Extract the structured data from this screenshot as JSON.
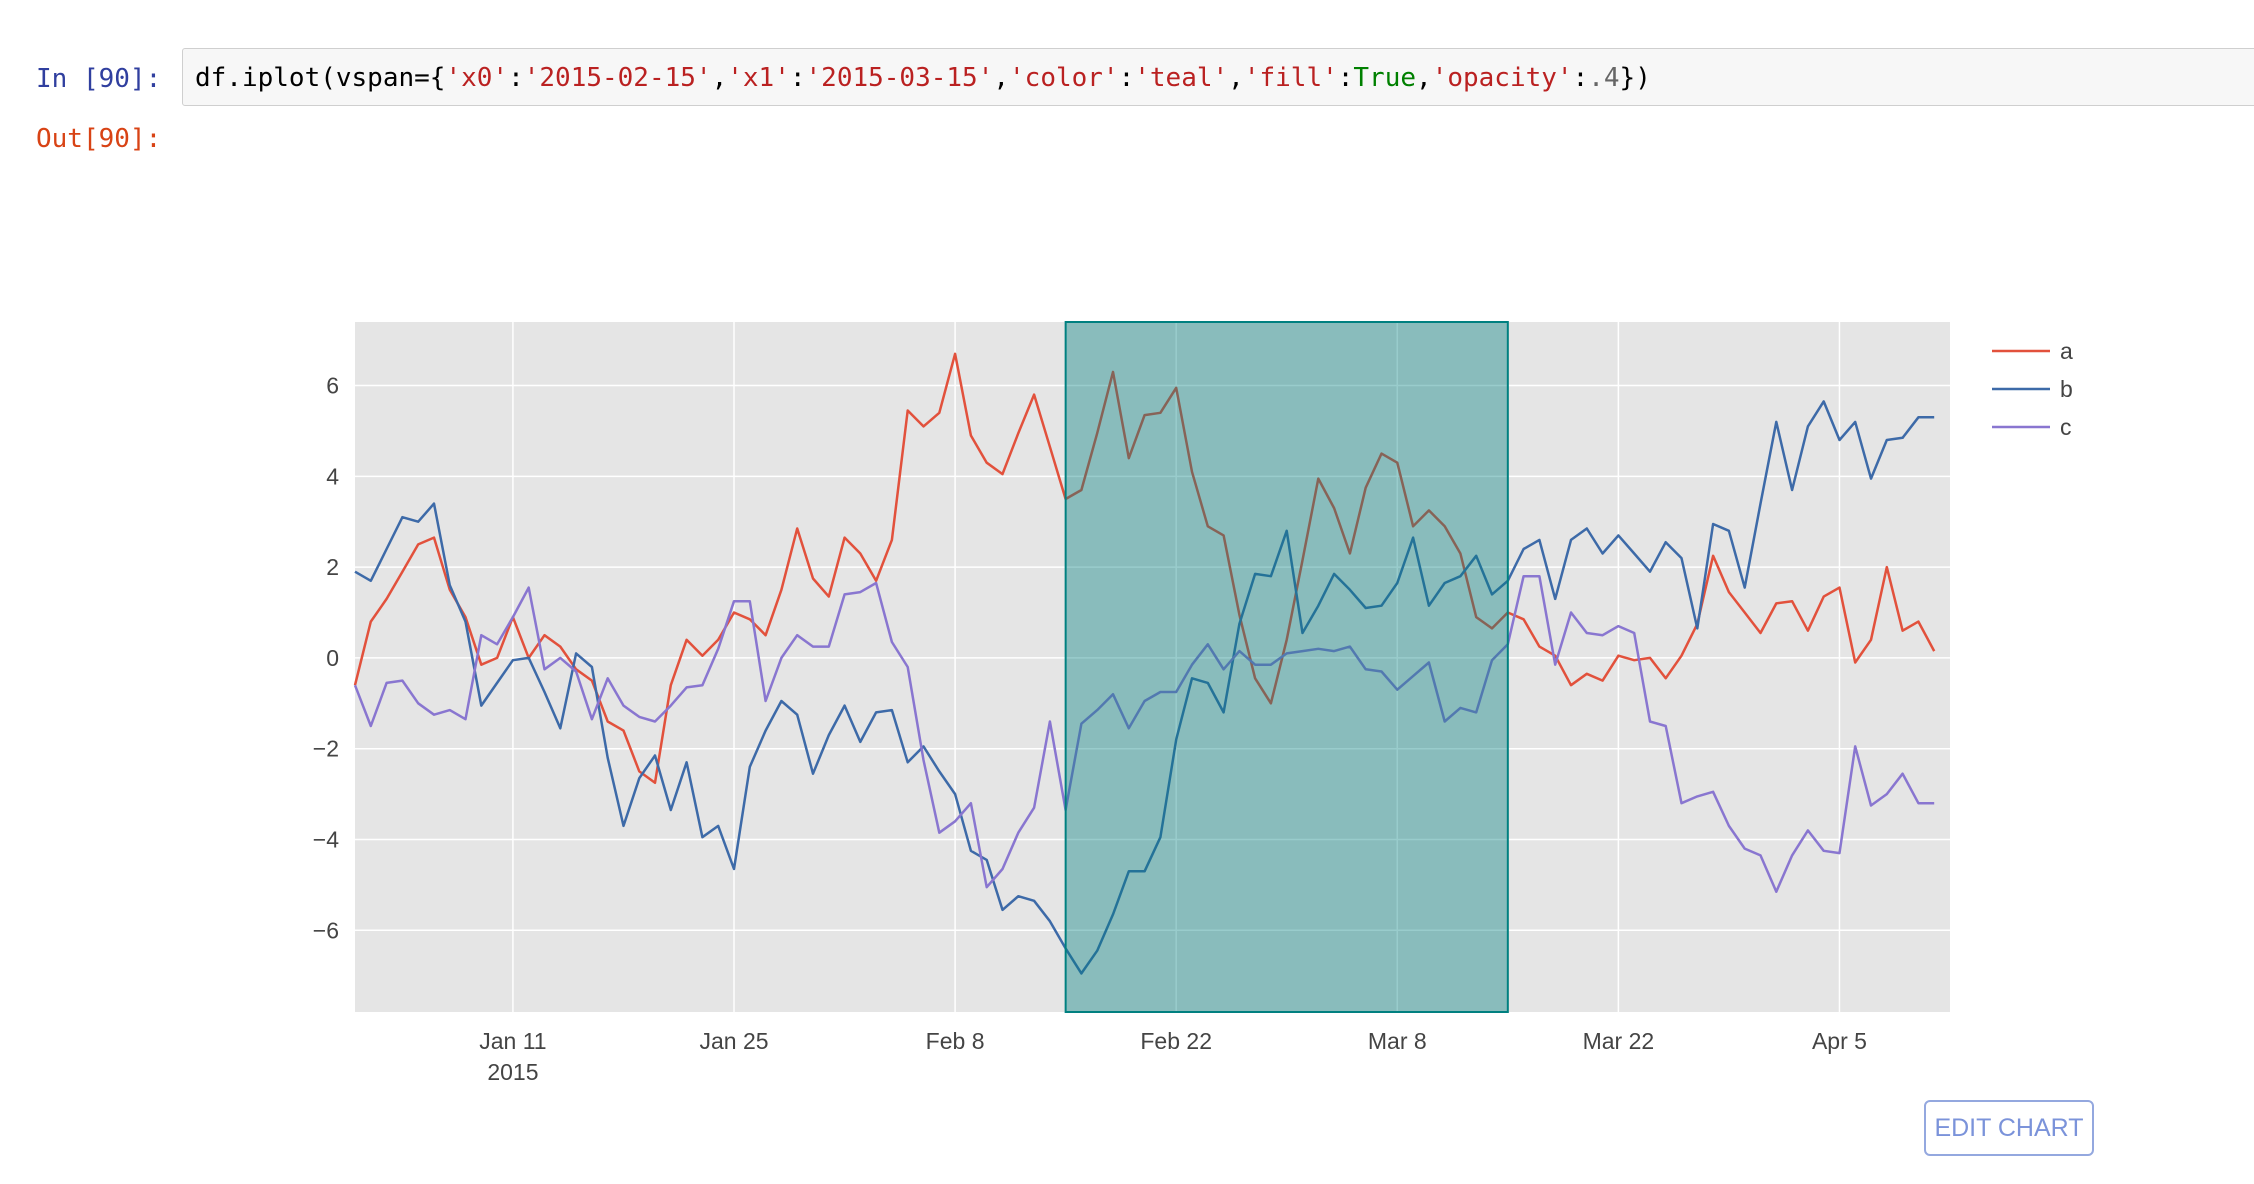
{
  "cell": {
    "in_prompt": "In [90]:",
    "out_prompt": "Out[90]:",
    "code_tokens": [
      {
        "t": "df.iplot(vspan={",
        "c": "p"
      },
      {
        "t": "'x0'",
        "c": "s"
      },
      {
        "t": ":",
        "c": "p"
      },
      {
        "t": "'2015-02-15'",
        "c": "s"
      },
      {
        "t": ",",
        "c": "p"
      },
      {
        "t": "'x1'",
        "c": "s"
      },
      {
        "t": ":",
        "c": "p"
      },
      {
        "t": "'2015-03-15'",
        "c": "s"
      },
      {
        "t": ",",
        "c": "p"
      },
      {
        "t": "'color'",
        "c": "s"
      },
      {
        "t": ":",
        "c": "p"
      },
      {
        "t": "'teal'",
        "c": "s"
      },
      {
        "t": ",",
        "c": "p"
      },
      {
        "t": "'fill'",
        "c": "s"
      },
      {
        "t": ":",
        "c": "p"
      },
      {
        "t": "True",
        "c": "k"
      },
      {
        "t": ",",
        "c": "p"
      },
      {
        "t": "'opacity'",
        "c": "s"
      },
      {
        "t": ":",
        "c": "p"
      },
      {
        "t": ".4",
        "c": "n"
      },
      {
        "t": "})",
        "c": "p"
      }
    ]
  },
  "edit_chart_label": "EDIT CHART",
  "colors": {
    "plot_bg": "#e5e5e5",
    "grid": "#ffffff",
    "a": "#e2513c",
    "b": "#3d6aa8",
    "c": "#8976d0",
    "vspan_fill": "#008080",
    "vspan_line": "#008080"
  },
  "chart_data": {
    "type": "line",
    "x_start": "2015-01-01",
    "x_end": "2015-04-12",
    "xlim": [
      "2015-01-01",
      "2015-04-12"
    ],
    "ylim": [
      -7.8,
      7.4
    ],
    "yticks": [
      -6,
      -4,
      -2,
      0,
      2,
      4,
      6
    ],
    "ytick_labels": [
      "−6",
      "−4",
      "−2",
      "0",
      "2",
      "4",
      "6"
    ],
    "xticks": [
      {
        "date": "2015-01-11",
        "label": "Jan 11",
        "sublabel": "2015"
      },
      {
        "date": "2015-01-25",
        "label": "Jan 25",
        "sublabel": ""
      },
      {
        "date": "2015-02-08",
        "label": "Feb 8",
        "sublabel": ""
      },
      {
        "date": "2015-02-22",
        "label": "Feb 22",
        "sublabel": ""
      },
      {
        "date": "2015-03-08",
        "label": "Mar 8",
        "sublabel": ""
      },
      {
        "date": "2015-03-22",
        "label": "Mar 22",
        "sublabel": ""
      },
      {
        "date": "2015-04-05",
        "label": "Apr 5",
        "sublabel": ""
      }
    ],
    "grid": true,
    "legend_position": "top-right",
    "vspan": {
      "x0": "2015-02-15",
      "x1": "2015-03-15",
      "color": "teal",
      "fill": true,
      "opacity": 0.4
    },
    "series": [
      {
        "name": "a",
        "values": [
          -0.6,
          0.8,
          1.3,
          1.9,
          2.5,
          2.65,
          1.5,
          0.9,
          -0.15,
          0.0,
          0.9,
          0.0,
          0.5,
          0.25,
          -0.25,
          -0.5,
          -1.4,
          -1.6,
          -2.5,
          -2.75,
          -0.6,
          0.4,
          0.05,
          0.4,
          1.0,
          0.85,
          0.5,
          1.5,
          2.85,
          1.75,
          1.35,
          2.65,
          2.3,
          1.7,
          2.6,
          5.45,
          5.1,
          5.4,
          6.7,
          4.9,
          4.3,
          4.05,
          4.95,
          5.8,
          4.65,
          3.5,
          3.7,
          4.95,
          6.3,
          4.4,
          5.35,
          5.4,
          5.95,
          4.1,
          2.9,
          2.7,
          0.95,
          -0.45,
          -1.0,
          0.4,
          2.15,
          3.95,
          3.3,
          2.3,
          3.75,
          4.5,
          4.3,
          2.9,
          3.25,
          2.9,
          2.3,
          0.9,
          0.65,
          1.0,
          0.85,
          0.25,
          0.05,
          -0.6,
          -0.35,
          -0.5,
          0.05,
          -0.05,
          0.0,
          -0.45,
          0.05,
          0.75,
          2.25,
          1.45,
          1.0,
          0.55,
          1.2,
          1.25,
          0.6,
          1.35,
          1.55,
          -0.1,
          0.4,
          2.0,
          0.6,
          0.8,
          0.15
        ]
      },
      {
        "name": "b",
        "values": [
          1.9,
          1.7,
          2.4,
          3.1,
          3.0,
          3.4,
          1.6,
          0.8,
          -1.05,
          -0.55,
          -0.05,
          0.0,
          -0.75,
          -1.55,
          0.1,
          -0.2,
          -2.2,
          -3.7,
          -2.65,
          -2.15,
          -3.35,
          -2.3,
          -3.95,
          -3.7,
          -4.65,
          -2.4,
          -1.6,
          -0.95,
          -1.25,
          -2.55,
          -1.7,
          -1.05,
          -1.85,
          -1.2,
          -1.15,
          -2.3,
          -1.95,
          -2.5,
          -3.0,
          -4.25,
          -4.45,
          -5.55,
          -5.25,
          -5.35,
          -5.8,
          -6.4,
          -6.95,
          -6.45,
          -5.65,
          -4.7,
          -4.7,
          -3.95,
          -1.8,
          -0.45,
          -0.55,
          -1.2,
          0.75,
          1.85,
          1.8,
          2.8,
          0.55,
          1.15,
          1.85,
          1.5,
          1.1,
          1.15,
          1.65,
          2.65,
          1.15,
          1.65,
          1.8,
          2.25,
          1.4,
          1.7,
          2.4,
          2.6,
          1.3,
          2.6,
          2.85,
          2.3,
          2.7,
          2.3,
          1.9,
          2.55,
          2.2,
          0.65,
          2.95,
          2.8,
          1.55,
          3.4,
          5.2,
          3.7,
          5.1,
          5.65,
          4.8,
          5.2,
          3.95,
          4.8,
          4.85,
          5.3,
          5.3
        ]
      },
      {
        "name": "c",
        "values": [
          -0.6,
          -1.5,
          -0.55,
          -0.5,
          -1.0,
          -1.25,
          -1.15,
          -1.35,
          0.5,
          0.3,
          0.9,
          1.55,
          -0.25,
          0.0,
          -0.3,
          -1.35,
          -0.45,
          -1.05,
          -1.3,
          -1.4,
          -1.05,
          -0.65,
          -0.6,
          0.2,
          1.25,
          1.25,
          -0.95,
          0.0,
          0.5,
          0.25,
          0.25,
          1.4,
          1.45,
          1.65,
          0.35,
          -0.2,
          -2.25,
          -3.85,
          -3.6,
          -3.2,
          -5.05,
          -4.65,
          -3.85,
          -3.3,
          -1.4,
          -3.35,
          -1.45,
          -1.15,
          -0.8,
          -1.55,
          -0.95,
          -0.75,
          -0.75,
          -0.15,
          0.3,
          -0.25,
          0.15,
          -0.15,
          -0.15,
          0.1,
          0.15,
          0.2,
          0.15,
          0.25,
          -0.25,
          -0.3,
          -0.7,
          -0.4,
          -0.1,
          -1.4,
          -1.1,
          -1.2,
          -0.05,
          0.3,
          1.8,
          1.8,
          -0.15,
          1.0,
          0.55,
          0.5,
          0.7,
          0.55,
          -1.4,
          -1.5,
          -3.2,
          -3.05,
          -2.95,
          -3.7,
          -4.2,
          -4.35,
          -5.15,
          -4.35,
          -3.8,
          -4.25,
          -4.3,
          -1.95,
          -3.25,
          -3.0,
          -2.55,
          -3.2,
          -3.2
        ]
      }
    ]
  }
}
